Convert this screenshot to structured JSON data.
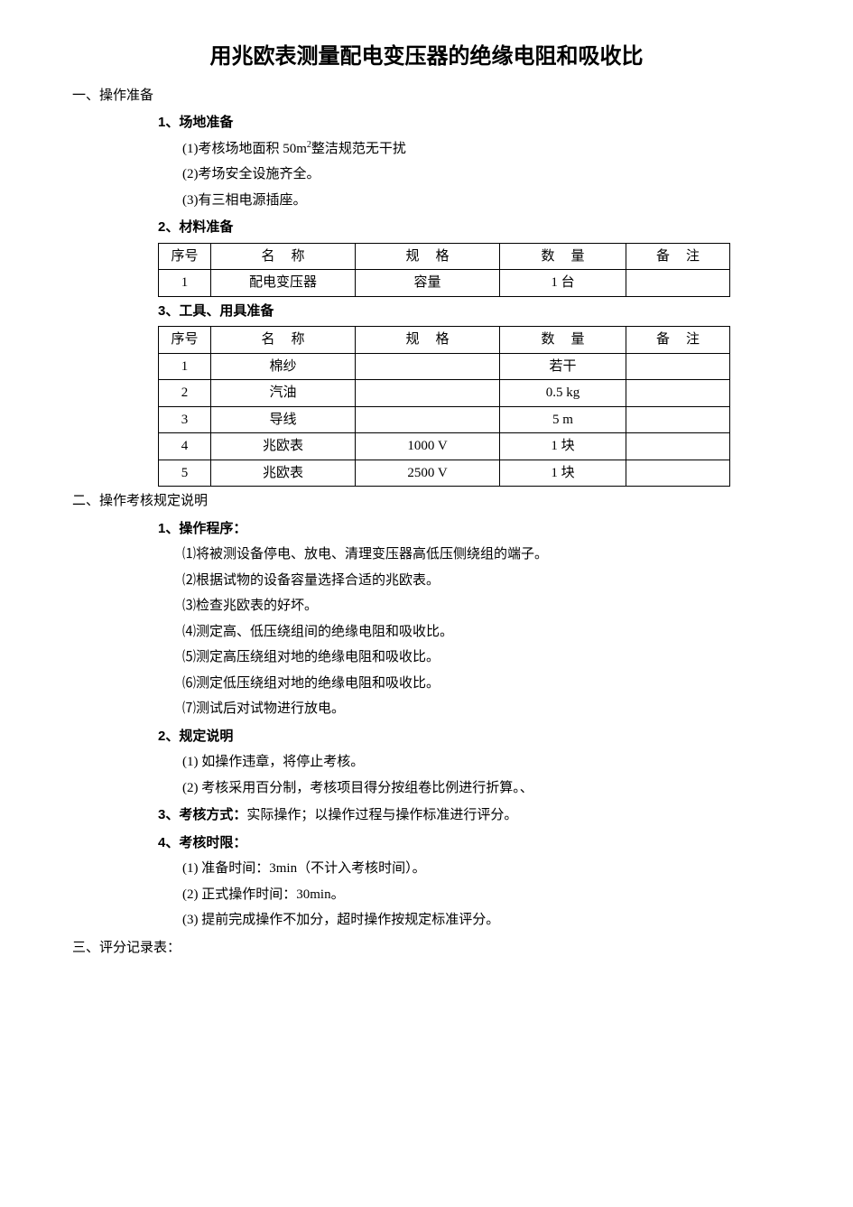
{
  "title": "用兆欧表测量配电变压器的绝缘电阻和吸收比",
  "s1": {
    "heading": "一、操作准备",
    "p1": {
      "heading": "1、场地准备",
      "line1_a": "(1)考核场地面积 50m",
      "line1_b": "整洁规范无干扰",
      "line2": "(2)考场安全设施齐全。",
      "line3": "(3)有三相电源插座。"
    },
    "p2": {
      "heading": "2、材料准备"
    },
    "p3": {
      "heading": "3、工具、用具准备"
    }
  },
  "table_headers": {
    "seq": "序号",
    "name": "名称",
    "spec": "规格",
    "qty": "数量",
    "rem": "备注"
  },
  "t1": {
    "r1": {
      "seq": "1",
      "name": "配电变压器",
      "spec": "容量",
      "qty": "1 台",
      "rem": ""
    }
  },
  "t2": {
    "r1": {
      "seq": "1",
      "name": "棉纱",
      "spec": "",
      "qty": "若干",
      "rem": ""
    },
    "r2": {
      "seq": "2",
      "name": "汽油",
      "spec": "",
      "qty": "0.5 kg",
      "rem": ""
    },
    "r3": {
      "seq": "3",
      "name": "导线",
      "spec": "",
      "qty": "5 m",
      "rem": ""
    },
    "r4": {
      "seq": "4",
      "name": "兆欧表",
      "spec": "1000 V",
      "qty": "1 块",
      "rem": ""
    },
    "r5": {
      "seq": "5",
      "name": "兆欧表",
      "spec": "2500 V",
      "qty": "1 块",
      "rem": ""
    }
  },
  "s2": {
    "heading": "二、操作考核规定说明",
    "p1": {
      "heading": "1、操作程序：",
      "l1": "⑴将被测设备停电、放电、清理变压器高低压侧绕组的端子。",
      "l2": "⑵根据试物的设备容量选择合适的兆欧表。",
      "l3": "⑶检查兆欧表的好坏。",
      "l4": "⑷测定高、低压绕组间的绝缘电阻和吸收比。",
      "l5": "⑸测定高压绕组对地的绝缘电阻和吸收比。",
      "l6": "⑹测定低压绕组对地的绝缘电阻和吸收比。",
      "l7": "⑺测试后对试物进行放电。"
    },
    "p2": {
      "heading": "2、规定说明",
      "l1": "(1) 如操作违章，将停止考核。",
      "l2": "(2) 考核采用百分制，考核项目得分按组卷比例进行折算。、"
    },
    "p3": {
      "label": "3、考核方式：",
      "text": "实际操作；以操作过程与操作标准进行评分。"
    },
    "p4": {
      "heading": "4、考核时限：",
      "l1": "(1) 准备时间：3min（不计入考核时间）。",
      "l2": "(2) 正式操作时间：30min。",
      "l3": "(3) 提前完成操作不加分，超时操作按规定标准评分。"
    }
  },
  "s3": {
    "heading": "三、评分记录表："
  },
  "style": {
    "background_color": "#ffffff",
    "text_color": "#000000",
    "border_color": "#000000",
    "title_fontsize": 24,
    "body_fontsize": 15,
    "col_widths": {
      "seq": 58,
      "name": 160,
      "spec": 160,
      "qty": 140,
      "rem": 115
    }
  }
}
